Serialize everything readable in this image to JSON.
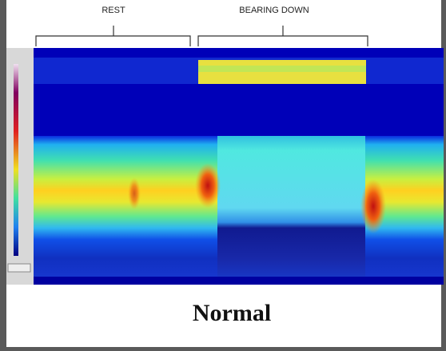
{
  "header": {
    "phases": [
      "REST",
      "BEARING DOWN"
    ]
  },
  "caption": "Normal"
}
